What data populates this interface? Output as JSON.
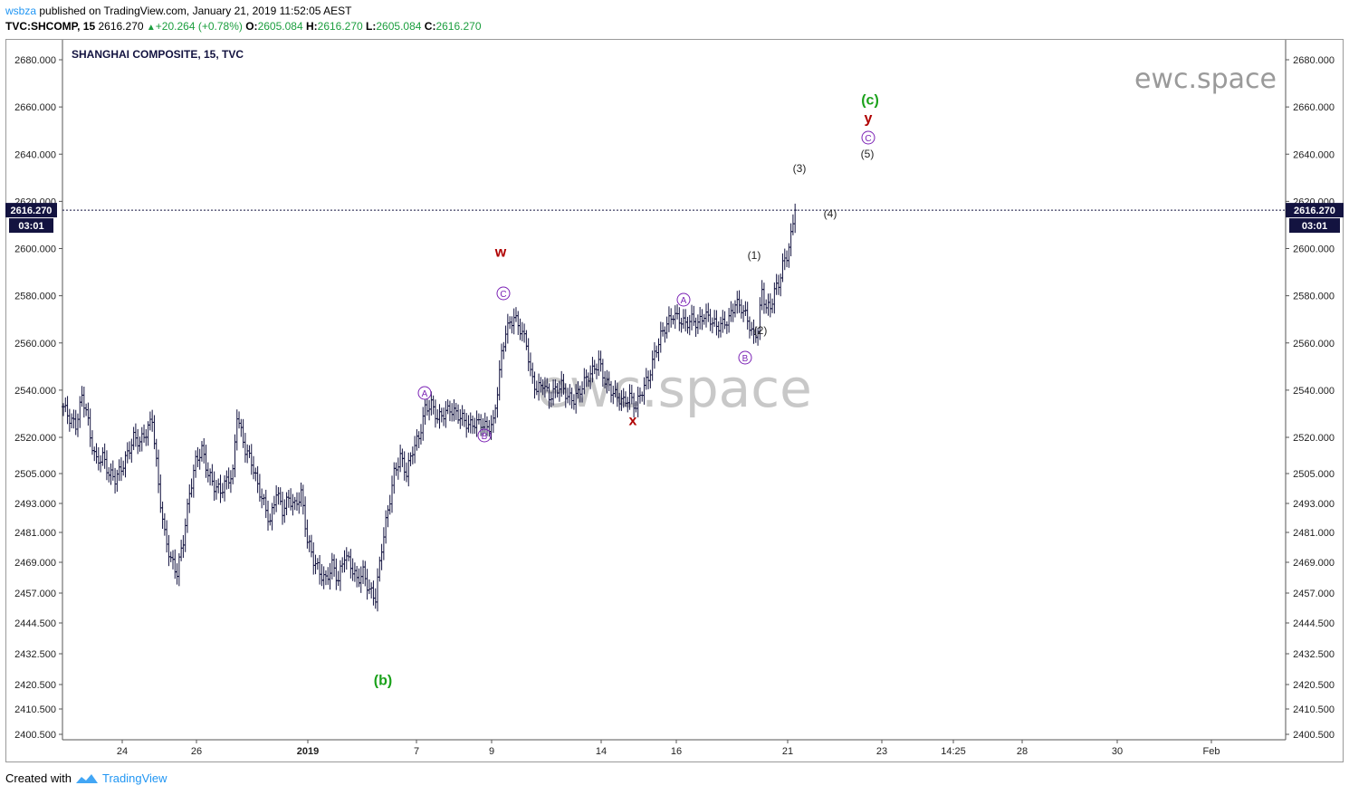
{
  "header": {
    "user": "wsbza",
    "published_text": "published on TradingView.com, January 21, 2019 11:52:05 AEST",
    "symbol": "TVC:SHCOMP, 15",
    "last": "2616.270",
    "change": "+20.264 (+0.78%)",
    "o_label": "O:",
    "o_value": "2605.084",
    "h_label": "H:",
    "h_value": "2616.270",
    "l_label": "L:",
    "l_value": "2605.084",
    "c_label": "C:",
    "c_value": "2616.270"
  },
  "footer": {
    "created_with": "Created with",
    "brand": "TradingView"
  },
  "colors": {
    "candle": "#131340",
    "green": "#1aa11a",
    "red": "#b00000",
    "purple": "#7b22b5",
    "accent": "#2196f3"
  },
  "chart_data": {
    "type": "bar",
    "title": "SHANGHAI COMPOSITE, 15, TVC",
    "watermark": "ewc.space",
    "ylim": [
      2400.5,
      2686
    ],
    "y_ticks": [
      "2680.000",
      "2660.000",
      "2640.000",
      "2620.000",
      "2600.000",
      "2580.000",
      "2560.000",
      "2540.000",
      "2520.000",
      "2505.000",
      "2493.000",
      "2481.000",
      "2469.000",
      "2457.000",
      "2444.500",
      "2432.500",
      "2420.500",
      "2410.500",
      "2400.500"
    ],
    "x_ticks": [
      "24",
      "26",
      "2019",
      "7",
      "9",
      "14",
      "16",
      "21",
      "23",
      "14:25",
      "28",
      "30",
      "Feb"
    ],
    "last_price": {
      "value": "2616.270",
      "countdown": "03:01"
    },
    "waypoints": [
      [
        0,
        2533
      ],
      [
        3,
        2528
      ],
      [
        6,
        2525
      ],
      [
        9,
        2537
      ],
      [
        11,
        2532
      ],
      [
        13,
        2520
      ],
      [
        16,
        2510
      ],
      [
        19,
        2512
      ],
      [
        22,
        2505
      ],
      [
        25,
        2503
      ],
      [
        28,
        2507
      ],
      [
        31,
        2513
      ],
      [
        34,
        2520
      ],
      [
        37,
        2518
      ],
      [
        40,
        2522
      ],
      [
        43,
        2528
      ],
      [
        46,
        2500
      ],
      [
        49,
        2480
      ],
      [
        52,
        2470
      ],
      [
        55,
        2465
      ],
      [
        58,
        2478
      ],
      [
        61,
        2497
      ],
      [
        64,
        2510
      ],
      [
        67,
        2515
      ],
      [
        70,
        2505
      ],
      [
        73,
        2500
      ],
      [
        76,
        2498
      ],
      [
        79,
        2502
      ],
      [
        82,
        2505
      ],
      [
        84,
        2530
      ],
      [
        86,
        2522
      ],
      [
        88,
        2515
      ],
      [
        91,
        2510
      ],
      [
        94,
        2500
      ],
      [
        97,
        2493
      ],
      [
        100,
        2485
      ],
      [
        103,
        2498
      ],
      [
        106,
        2490
      ],
      [
        109,
        2495
      ],
      [
        112,
        2492
      ],
      [
        115,
        2497
      ],
      [
        118,
        2478
      ],
      [
        121,
        2470
      ],
      [
        124,
        2465
      ],
      [
        127,
        2462
      ],
      [
        130,
        2468
      ],
      [
        133,
        2462
      ],
      [
        136,
        2472
      ],
      [
        139,
        2468
      ],
      [
        142,
        2462
      ],
      [
        145,
        2465
      ],
      [
        148,
        2458
      ],
      [
        151,
        2455
      ],
      [
        154,
        2475
      ],
      [
        157,
        2490
      ],
      [
        160,
        2505
      ],
      [
        163,
        2512
      ],
      [
        166,
        2505
      ],
      [
        169,
        2515
      ],
      [
        172,
        2520
      ],
      [
        175,
        2532
      ],
      [
        178,
        2534
      ],
      [
        181,
        2528
      ],
      [
        184,
        2530
      ],
      [
        187,
        2532
      ],
      [
        190,
        2530
      ],
      [
        193,
        2528
      ],
      [
        196,
        2525
      ],
      [
        199,
        2526
      ],
      [
        202,
        2526
      ],
      [
        205,
        2524
      ],
      [
        208,
        2526
      ],
      [
        210,
        2540
      ],
      [
        212,
        2555
      ],
      [
        214,
        2565
      ],
      [
        216,
        2568
      ],
      [
        218,
        2571
      ],
      [
        221,
        2566
      ],
      [
        224,
        2560
      ],
      [
        226,
        2547
      ],
      [
        229,
        2540
      ],
      [
        232,
        2543
      ],
      [
        235,
        2537
      ],
      [
        238,
        2540
      ],
      [
        241,
        2542
      ],
      [
        244,
        2537
      ],
      [
        247,
        2536
      ],
      [
        250,
        2540
      ],
      [
        253,
        2545
      ],
      [
        256,
        2548
      ],
      [
        259,
        2552
      ],
      [
        262,
        2544
      ],
      [
        265,
        2540
      ],
      [
        268,
        2537
      ],
      [
        271,
        2535
      ],
      [
        274,
        2537
      ],
      [
        277,
        2533
      ],
      [
        280,
        2540
      ],
      [
        283,
        2545
      ],
      [
        286,
        2555
      ],
      [
        289,
        2563
      ],
      [
        292,
        2568
      ],
      [
        295,
        2572
      ],
      [
        298,
        2570
      ],
      [
        301,
        2568
      ],
      [
        304,
        2570
      ],
      [
        307,
        2568
      ],
      [
        310,
        2572
      ],
      [
        313,
        2570
      ],
      [
        316,
        2567
      ],
      [
        319,
        2568
      ],
      [
        322,
        2570
      ],
      [
        325,
        2577
      ],
      [
        328,
        2575
      ],
      [
        331,
        2570
      ],
      [
        334,
        2562
      ],
      [
        336,
        2566
      ],
      [
        338,
        2582
      ],
      [
        340,
        2575
      ],
      [
        342,
        2575
      ],
      [
        344,
        2582
      ],
      [
        346,
        2585
      ],
      [
        348,
        2593
      ],
      [
        350,
        2597
      ],
      [
        352,
        2605
      ],
      [
        354,
        2616.27
      ]
    ],
    "annotations": [
      {
        "text": "(c)",
        "color": "green",
        "bold": true
      },
      {
        "text": "y",
        "color": "red",
        "bold": true
      },
      {
        "text": "C",
        "circled": true,
        "color": "purple"
      },
      {
        "text": "(5)",
        "color": "black"
      },
      {
        "text": "(3)",
        "color": "black"
      },
      {
        "text": "(4)",
        "color": "black"
      },
      {
        "text": "w",
        "color": "red",
        "bold": true
      },
      {
        "text": "C",
        "circled": true,
        "color": "purple"
      },
      {
        "text": "(1)",
        "color": "black"
      },
      {
        "text": "A",
        "circled": true,
        "color": "purple"
      },
      {
        "text": "(2)",
        "color": "black"
      },
      {
        "text": "B",
        "circled": true,
        "color": "purple"
      },
      {
        "text": "A",
        "circled": true,
        "color": "purple"
      },
      {
        "text": "B",
        "circled": true,
        "color": "purple"
      },
      {
        "text": "x",
        "color": "red",
        "bold": true
      },
      {
        "text": "(b)",
        "color": "green",
        "bold": true
      }
    ]
  }
}
